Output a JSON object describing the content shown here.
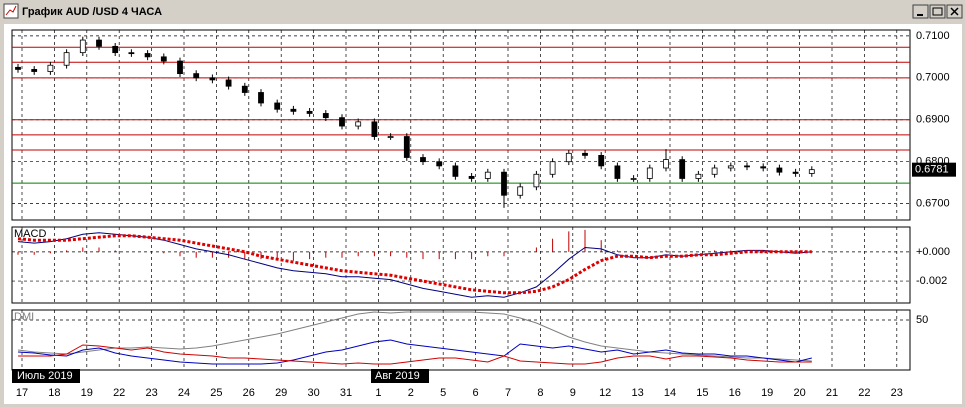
{
  "chart_data": {
    "type": "candlestick",
    "title": "График AUD /USD  4 ЧАСА",
    "categories": [
      "17",
      null,
      "18",
      null,
      "19",
      null,
      "22",
      null,
      "23",
      null,
      "24",
      null,
      "25",
      null,
      "26",
      null,
      "29",
      null,
      "30",
      null,
      "31",
      null,
      "1",
      null,
      "2",
      null,
      "5",
      null,
      "6",
      null,
      "7",
      null,
      "8",
      null,
      "9",
      null,
      "12",
      null,
      "13",
      null,
      "14",
      null,
      "15",
      null,
      "16",
      null,
      "19",
      null,
      "20",
      null,
      "21",
      null,
      "22",
      null,
      "23",
      null
    ],
    "month_labels": [
      "Июль 2019",
      "Авг 2019"
    ],
    "open": [
      0.7025,
      0.702,
      0.7015,
      0.703,
      0.706,
      0.709,
      0.7075,
      0.706,
      0.7058,
      0.705,
      0.704,
      0.701,
      0.7,
      0.6995,
      0.698,
      0.6965,
      0.694,
      0.6925,
      0.692,
      0.6915,
      0.6905,
      0.6885,
      0.6895,
      0.686,
      0.686,
      0.681,
      0.68,
      0.679,
      0.6765,
      0.676,
      0.6775,
      0.672,
      0.674,
      0.677,
      0.68,
      0.682,
      0.6815,
      0.679,
      0.676,
      0.676,
      0.6785,
      0.6805,
      0.676,
      0.677,
      0.6785,
      0.679,
      0.6788,
      0.6785,
      0.6775,
      0.6772,
      null,
      null,
      null,
      null,
      null,
      null
    ],
    "high": [
      0.7033,
      0.7028,
      0.7038,
      0.7068,
      0.7098,
      0.7098,
      0.7083,
      0.7068,
      0.7066,
      0.7058,
      0.7048,
      0.7018,
      0.7008,
      0.7003,
      0.6988,
      0.6973,
      0.6948,
      0.6933,
      0.6928,
      0.6923,
      0.6913,
      0.6903,
      0.6903,
      0.6868,
      0.6868,
      0.6818,
      0.6808,
      0.6798,
      0.6773,
      0.6783,
      0.6783,
      0.6748,
      0.6778,
      0.6808,
      0.6828,
      0.6828,
      0.6823,
      0.6798,
      0.6768,
      0.6793,
      0.683,
      0.6813,
      0.6778,
      0.6793,
      0.6798,
      0.6798,
      0.6796,
      0.6793,
      0.6783,
      0.6789,
      null,
      null,
      null,
      null,
      null,
      null
    ],
    "low": [
      0.7012,
      0.7007,
      0.7007,
      0.7022,
      0.7052,
      0.7067,
      0.7052,
      0.705,
      0.7042,
      0.7032,
      0.7002,
      0.6992,
      0.6987,
      0.6972,
      0.6957,
      0.6932,
      0.6917,
      0.6912,
      0.6907,
      0.6897,
      0.6877,
      0.6877,
      0.6852,
      0.6852,
      0.6802,
      0.6792,
      0.6782,
      0.6757,
      0.6752,
      0.6752,
      0.669,
      0.6712,
      0.6732,
      0.6762,
      0.6792,
      0.6807,
      0.6782,
      0.6752,
      0.6752,
      0.6752,
      0.6777,
      0.6752,
      0.6752,
      0.6762,
      0.6777,
      0.678,
      0.6777,
      0.6767,
      0.6764,
      0.6764,
      null,
      null,
      null,
      null,
      null,
      null
    ],
    "close": [
      0.702,
      0.7015,
      0.703,
      0.706,
      0.709,
      0.7075,
      0.706,
      0.7058,
      0.705,
      0.704,
      0.701,
      0.7,
      0.6995,
      0.698,
      0.6965,
      0.694,
      0.6925,
      0.692,
      0.6915,
      0.6905,
      0.6885,
      0.6895,
      0.686,
      0.686,
      0.681,
      0.68,
      0.679,
      0.6765,
      0.676,
      0.6775,
      0.672,
      0.674,
      0.677,
      0.68,
      0.682,
      0.6815,
      0.679,
      0.676,
      0.676,
      0.6785,
      0.6805,
      0.676,
      0.677,
      0.6785,
      0.679,
      0.6788,
      0.6785,
      0.6775,
      0.6772,
      0.6781,
      null,
      null,
      null,
      null,
      null,
      null
    ],
    "last_label": "0.6781",
    "ylim": [
      0.6661,
      0.7114
    ],
    "yticks": [
      {
        "value": 0.67,
        "label": "0.6700"
      },
      {
        "value": 0.68,
        "label": "0.6800"
      },
      {
        "value": 0.69,
        "label": "0.6900"
      },
      {
        "value": 0.7,
        "label": "0.7000"
      },
      {
        "value": 0.71,
        "label": "0.7100"
      }
    ],
    "levels": [
      {
        "value": 0.7073,
        "color": "#c00000"
      },
      {
        "value": 0.7037,
        "color": "#c00000"
      },
      {
        "value": 0.7,
        "color": "#c00000"
      },
      {
        "value": 0.69,
        "color": "#c00000"
      },
      {
        "value": 0.6864,
        "color": "#c00000"
      },
      {
        "value": 0.6828,
        "color": "#c00000"
      },
      {
        "value": 0.6749,
        "color": "#008000"
      }
    ],
    "grid": true,
    "macd": {
      "label": "MACD",
      "ylim": [
        -0.0035,
        0.0017
      ],
      "yticks": [
        {
          "value": -0.002,
          "label": "-0.002"
        },
        {
          "value": 0,
          "label": "+0.000"
        }
      ],
      "histogram": {
        "color": "#c00000",
        "values": [
          -0.0002,
          -0.0002,
          -0.0001,
          0.0001,
          0.0003,
          0.0003,
          0.0001,
          0,
          0,
          -0.0001,
          -0.0003,
          -0.0004,
          -0.0004,
          -0.0004,
          -0.0005,
          -0.0005,
          -0.0006,
          -0.0006,
          -0.0005,
          -0.0004,
          -0.0004,
          -0.0003,
          -0.0003,
          -0.0003,
          -0.0004,
          -0.0005,
          -0.0005,
          -0.0005,
          -0.0005,
          -0.0003,
          -0.0003,
          0,
          0.0003,
          0.0009,
          0.0014,
          0.0015,
          0.0008,
          0.0001,
          -0.0001,
          0,
          0.0001,
          0,
          0,
          0.0001,
          0.0001,
          0.0001,
          0.0001,
          0,
          -0.0001,
          0,
          null,
          null,
          null,
          null,
          null,
          null
        ]
      },
      "series": [
        {
          "color": "#000080",
          "dotted": false,
          "values": [
            0.0007,
            0.0006,
            0.0007,
            0.0009,
            0.0012,
            0.0013,
            0.0012,
            0.0011,
            0.001,
            0.0008,
            0.0005,
            0.0002,
            0,
            -0.0002,
            -0.0005,
            -0.0008,
            -0.0011,
            -0.0013,
            -0.0014,
            -0.0015,
            -0.0017,
            -0.0017,
            -0.0018,
            -0.0019,
            -0.0022,
            -0.0025,
            -0.0027,
            -0.0029,
            -0.0031,
            -0.003,
            -0.0031,
            -0.0028,
            -0.0024,
            -0.0015,
            -0.0005,
            0.0003,
            0.0002,
            -0.0002,
            -0.0004,
            -0.0004,
            -0.0002,
            -0.0003,
            -0.0002,
            -0.0001,
            0,
            0.0001,
            0.0001,
            0,
            -0.0001,
            0,
            null,
            null,
            null,
            null,
            null,
            null
          ]
        },
        {
          "color": "#dd0000",
          "dotted": true,
          "values": [
            0.0009,
            0.0008,
            0.0008,
            0.0008,
            0.0009,
            0.001,
            0.0011,
            0.0011,
            0.001,
            0.0009,
            0.0008,
            0.0006,
            0.0004,
            0.0002,
            0,
            -0.0003,
            -0.0005,
            -0.0007,
            -0.0009,
            -0.0011,
            -0.0013,
            -0.0014,
            -0.0015,
            -0.0016,
            -0.0018,
            -0.002,
            -0.0022,
            -0.0024,
            -0.0026,
            -0.0027,
            -0.0028,
            -0.0028,
            -0.0027,
            -0.0024,
            -0.0019,
            -0.0012,
            -0.0006,
            -0.0003,
            -0.0003,
            -0.0004,
            -0.0003,
            -0.0003,
            -0.0002,
            -0.0002,
            -0.0001,
            0,
            0,
            0,
            0,
            0,
            null,
            null,
            null,
            null,
            null,
            null
          ]
        }
      ]
    },
    "dmi": {
      "label": "DMI",
      "ylim": [
        0,
        60
      ],
      "yticks": [
        50
      ],
      "series": [
        {
          "color": "#808080",
          "values": [
            20,
            18,
            17,
            16,
            18,
            20,
            22,
            22,
            23,
            22,
            21,
            22,
            24,
            27,
            30,
            33,
            36,
            40,
            44,
            48,
            52,
            56,
            58,
            57,
            58,
            58,
            58,
            58,
            58,
            57,
            56,
            52,
            47,
            40,
            33,
            28,
            24,
            22,
            20,
            18,
            17,
            16,
            15,
            14,
            13,
            12,
            12,
            11,
            10,
            9,
            null,
            null,
            null,
            null,
            null,
            null
          ]
        },
        {
          "color": "#0000c0",
          "values": [
            18,
            17,
            15,
            14,
            20,
            22,
            17,
            14,
            12,
            10,
            8,
            7,
            6,
            6,
            6,
            6,
            7,
            10,
            14,
            18,
            20,
            24,
            28,
            30,
            26,
            24,
            22,
            20,
            18,
            16,
            14,
            26,
            24,
            22,
            24,
            21,
            18,
            20,
            16,
            18,
            20,
            17,
            16,
            16,
            14,
            14,
            12,
            10,
            8,
            12,
            null,
            null,
            null,
            null,
            null,
            null
          ]
        },
        {
          "color": "#d00000",
          "values": [
            14,
            14,
            14,
            16,
            25,
            24,
            22,
            20,
            22,
            18,
            16,
            15,
            14,
            12,
            12,
            11,
            10,
            9,
            8,
            7,
            6,
            7,
            6,
            6,
            8,
            10,
            12,
            12,
            10,
            8,
            14,
            9,
            8,
            7,
            6,
            6,
            8,
            12,
            14,
            14,
            11,
            14,
            14,
            13,
            12,
            10,
            9,
            8,
            8,
            8,
            null,
            null,
            null,
            null,
            null,
            null
          ]
        }
      ]
    }
  }
}
